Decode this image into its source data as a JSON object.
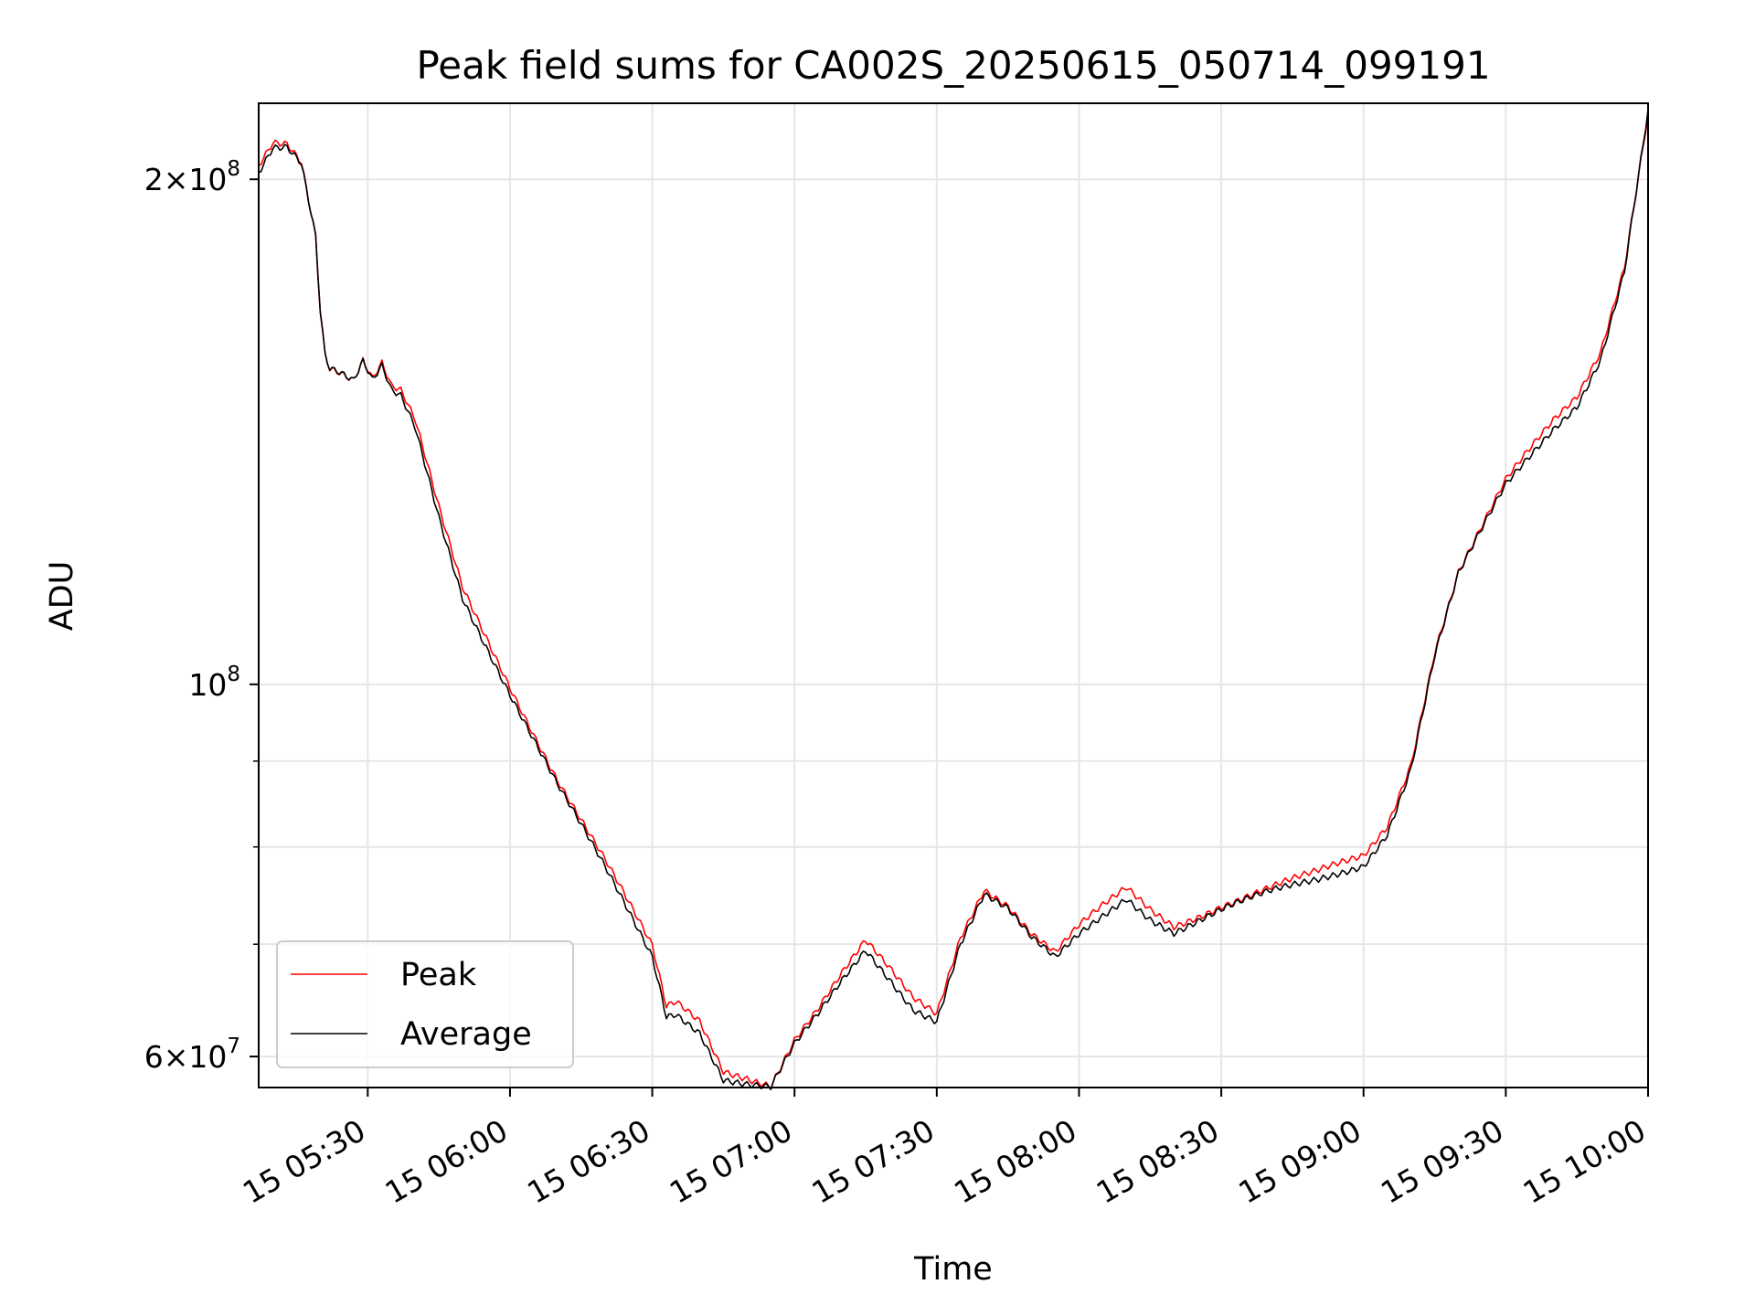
{
  "chart_data": {
    "type": "line",
    "title": "Peak field sums for CA002S_20250615_050714_099191",
    "xlabel": "Time",
    "ylabel": "ADU",
    "yscale": "log",
    "grid": true,
    "legend_placement": "lower-left",
    "xlim": [
      "2025-06-15 05:07",
      "2025-06-15 10:00"
    ],
    "ylim": [
      57500000,
      222000000
    ],
    "x_ticks": [
      {
        "time": "2025-06-15 05:30",
        "label": "15 05:30"
      },
      {
        "time": "2025-06-15 06:00",
        "label": "15 06:00"
      },
      {
        "time": "2025-06-15 06:30",
        "label": "15 06:30"
      },
      {
        "time": "2025-06-15 07:00",
        "label": "15 07:00"
      },
      {
        "time": "2025-06-15 07:30",
        "label": "15 07:30"
      },
      {
        "time": "2025-06-15 08:00",
        "label": "15 08:00"
      },
      {
        "time": "2025-06-15 08:30",
        "label": "15 08:30"
      },
      {
        "time": "2025-06-15 09:00",
        "label": "15 09:00"
      },
      {
        "time": "2025-06-15 09:30",
        "label": "15 09:30"
      },
      {
        "time": "2025-06-15 10:00",
        "label": "15 10:00"
      }
    ],
    "y_ticks": [
      {
        "value": 60000000,
        "base": "6×10",
        "exp": "7"
      },
      {
        "value": 100000000,
        "base": "10",
        "exp": "8"
      },
      {
        "value": 200000000,
        "base": "2×10",
        "exp": "8"
      }
    ],
    "y_minor_ticks": [
      70000000,
      80000000,
      90000000
    ],
    "x": [
      "2025-06-15 05:07",
      "2025-06-15 05:10",
      "2025-06-15 05:13",
      "2025-06-15 05:16",
      "2025-06-15 05:19",
      "2025-06-15 05:20",
      "2025-06-15 05:21",
      "2025-06-15 05:22",
      "2025-06-15 05:24",
      "2025-06-15 05:27",
      "2025-06-15 05:29",
      "2025-06-15 05:31",
      "2025-06-15 05:33",
      "2025-06-15 05:35",
      "2025-06-15 05:37",
      "2025-06-15 05:40",
      "2025-06-15 05:45",
      "2025-06-15 05:50",
      "2025-06-15 06:00",
      "2025-06-15 06:10",
      "2025-06-15 06:20",
      "2025-06-15 06:30",
      "2025-06-15 06:33",
      "2025-06-15 06:35",
      "2025-06-15 06:40",
      "2025-06-15 06:45",
      "2025-06-15 06:50",
      "2025-06-15 06:55",
      "2025-06-15 07:00",
      "2025-06-15 07:05",
      "2025-06-15 07:10",
      "2025-06-15 07:15",
      "2025-06-15 07:20",
      "2025-06-15 07:25",
      "2025-06-15 07:30",
      "2025-06-15 07:35",
      "2025-06-15 07:40",
      "2025-06-15 07:45",
      "2025-06-15 07:50",
      "2025-06-15 07:55",
      "2025-06-15 08:00",
      "2025-06-15 08:05",
      "2025-06-15 08:10",
      "2025-06-15 08:15",
      "2025-06-15 08:20",
      "2025-06-15 08:30",
      "2025-06-15 08:40",
      "2025-06-15 08:50",
      "2025-06-15 09:00",
      "2025-06-15 09:05",
      "2025-06-15 09:10",
      "2025-06-15 09:15",
      "2025-06-15 09:20",
      "2025-06-15 09:30",
      "2025-06-15 09:40",
      "2025-06-15 09:45",
      "2025-06-15 09:50",
      "2025-06-15 09:55",
      "2025-06-15 10:00"
    ],
    "series": [
      {
        "name": "Peak",
        "color": "#ff0000",
        "values": [
          204000000,
          211000000,
          211000000,
          206000000,
          186000000,
          168000000,
          158000000,
          155000000,
          154000000,
          152000000,
          156000000,
          152000000,
          155000000,
          150000000,
          149000000,
          143000000,
          127000000,
          114000000,
          100000000,
          88000000,
          78500000,
          69500000,
          64000000,
          64500000,
          63000000,
          59000000,
          58500000,
          57900000,
          61500000,
          64000000,
          67000000,
          70000000,
          67500000,
          65000000,
          63800000,
          71000000,
          75800000,
          74000000,
          71000000,
          69000000,
          71500000,
          73500000,
          75500000,
          73500000,
          72000000,
          74000000,
          75500000,
          77000000,
          79000000,
          82500000,
          90000000,
          105000000,
          117000000,
          132000000,
          143000000,
          148000000,
          158000000,
          178000000,
          220000000
        ]
      },
      {
        "name": "Average",
        "color": "#000000",
        "values": [
          203000000,
          210000000,
          210000000,
          205000000,
          185000000,
          167000000,
          157000000,
          154000000,
          153000000,
          151000000,
          155000000,
          151000000,
          154000000,
          149000000,
          148000000,
          142000000,
          126000000,
          113000000,
          99000000,
          87000000,
          77500000,
          68800000,
          63500000,
          63800000,
          62300000,
          58400000,
          57900000,
          57500000,
          60800000,
          63300000,
          66300000,
          69300000,
          66800000,
          64300000,
          63300000,
          70300000,
          75000000,
          73300000,
          70300000,
          68400000,
          70800000,
          72800000,
          74800000,
          72800000,
          71400000,
          73300000,
          74900000,
          76400000,
          78300000,
          81800000,
          89300000,
          104000000,
          116000000,
          131000000,
          142000000,
          147000000,
          157000000,
          177000000,
          220000000
        ]
      }
    ]
  }
}
